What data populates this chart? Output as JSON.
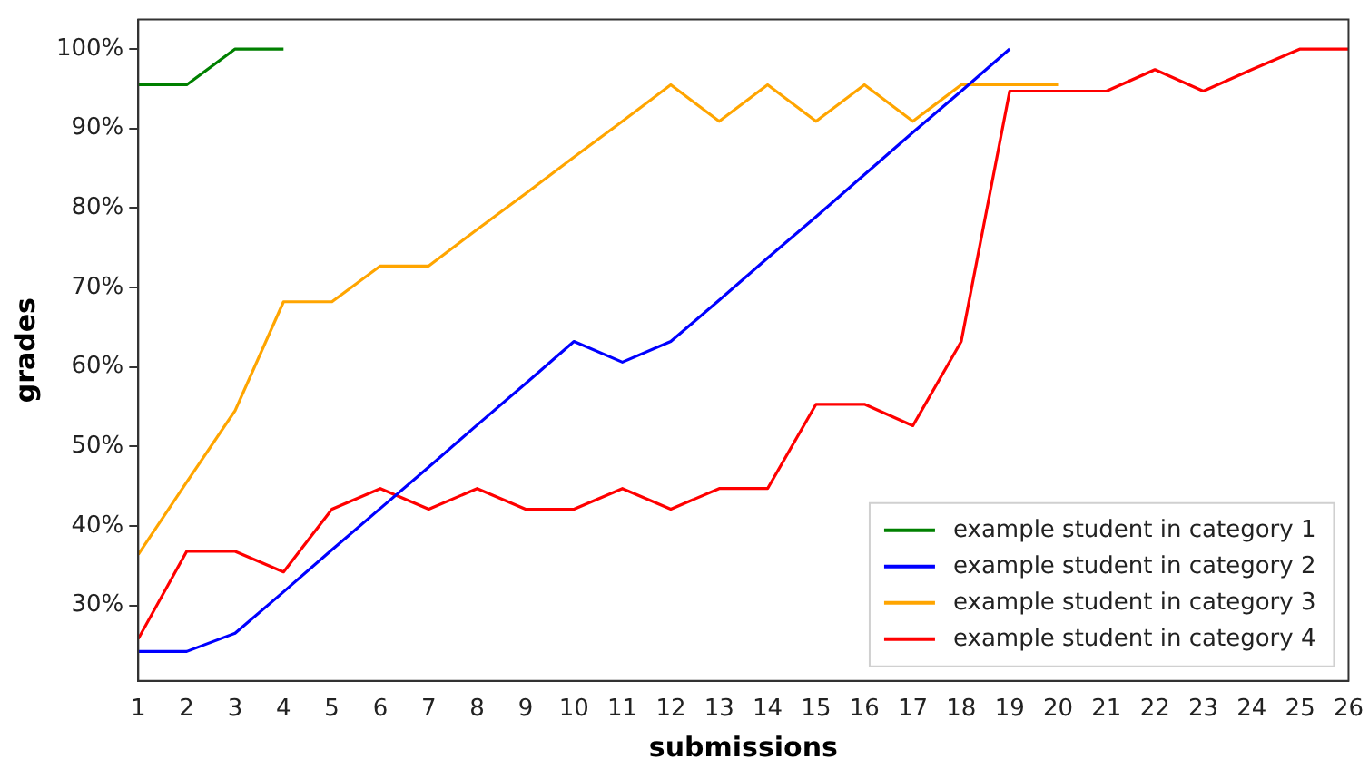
{
  "chart_data": {
    "type": "line",
    "xlabel": "submissions",
    "ylabel": "grades",
    "xlim": [
      1,
      26
    ],
    "xticks": [
      1,
      2,
      3,
      4,
      5,
      6,
      7,
      8,
      9,
      10,
      11,
      12,
      13,
      14,
      15,
      16,
      17,
      18,
      19,
      20,
      21,
      22,
      23,
      24,
      25,
      26
    ],
    "ylim": [
      20.5,
      103.7
    ],
    "yticks": [
      {
        "value": 30,
        "label": "30%"
      },
      {
        "value": 40,
        "label": "40%"
      },
      {
        "value": 50,
        "label": "50%"
      },
      {
        "value": 60,
        "label": "60%"
      },
      {
        "value": 70,
        "label": "70%"
      },
      {
        "value": 80,
        "label": "80%"
      },
      {
        "value": 90,
        "label": "90%"
      },
      {
        "value": 100,
        "label": "100%"
      }
    ],
    "grid": false,
    "legend": "bottom right",
    "marker": "none",
    "line_style": "solid",
    "series": [
      {
        "name": "example student in category 1",
        "color": "#008000",
        "x": [
          1,
          2,
          3,
          4
        ],
        "values": [
          95.5,
          95.5,
          100,
          100
        ]
      },
      {
        "name": "example student in category 2",
        "color": "#0000ff",
        "x": [
          1,
          2,
          3,
          4,
          5,
          6,
          7,
          8,
          9,
          10,
          11,
          12,
          13,
          14,
          15,
          16,
          17,
          18,
          19
        ],
        "values": [
          24.2,
          24.2,
          26.5,
          31.7,
          37,
          42.2,
          47.4,
          52.7,
          57.9,
          63.2,
          60.6,
          63.2,
          68.4,
          73.7,
          78.9,
          84.2,
          89.5,
          94.7,
          100
        ]
      },
      {
        "name": "example student in category 3",
        "color": "#ffa500",
        "x": [
          1,
          2,
          3,
          4,
          5,
          6,
          7,
          8,
          9,
          10,
          11,
          12,
          13,
          14,
          15,
          16,
          17,
          18,
          19,
          20
        ],
        "values": [
          36.4,
          45.5,
          54.5,
          68.2,
          68.2,
          72.7,
          72.7,
          77.3,
          81.8,
          86.4,
          90.9,
          95.5,
          90.9,
          95.5,
          90.9,
          95.5,
          90.9,
          95.5,
          95.5,
          95.5
        ]
      },
      {
        "name": "example student in category 4",
        "color": "#ff0000",
        "x": [
          1,
          2,
          3,
          4,
          5,
          6,
          7,
          8,
          9,
          10,
          11,
          12,
          13,
          14,
          15,
          16,
          17,
          18,
          19,
          20,
          21,
          22,
          23,
          24,
          25,
          26
        ],
        "values": [
          25.8,
          36.8,
          36.8,
          34.2,
          42.1,
          44.7,
          42.1,
          44.7,
          42.1,
          42.1,
          44.7,
          42.1,
          44.7,
          44.7,
          55.3,
          55.3,
          52.6,
          63.2,
          94.7,
          94.7,
          94.7,
          97.4,
          94.7,
          97.4,
          100,
          100
        ]
      }
    ]
  }
}
